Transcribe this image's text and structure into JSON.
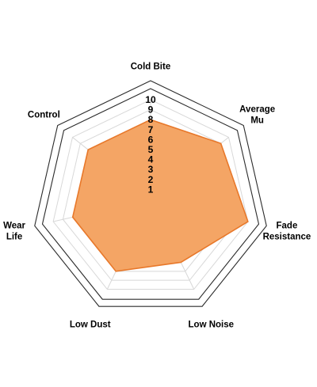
{
  "chart_data": {
    "type": "radar",
    "axes": [
      "Cold Bite",
      "Average Mu",
      "Fade Resistance",
      "Low Noise",
      "Low Dust",
      "Wear Life",
      "Control"
    ],
    "axis_label_lines": [
      [
        "Cold Bite"
      ],
      [
        "Average",
        "Mu"
      ],
      [
        "Fade",
        "Resistance"
      ],
      [
        "Low Noise"
      ],
      [
        "Low Dust"
      ],
      [
        "Wear",
        "Life"
      ],
      [
        "Control"
      ]
    ],
    "tick_labels": [
      "1",
      "2",
      "3",
      "4",
      "5",
      "6",
      "7",
      "8",
      "9",
      "10"
    ],
    "range": [
      0,
      10
    ],
    "gridlines": 10,
    "grid": true,
    "legend": "none",
    "series": [
      {
        "values": [
          8,
          9,
          10,
          7,
          8,
          8,
          8
        ],
        "color": "#f4a565",
        "stroke_color": "#e8782a"
      }
    ],
    "colors": {
      "grid": "#d8d8d8",
      "outer_ring": "#2b2b2b"
    }
  }
}
